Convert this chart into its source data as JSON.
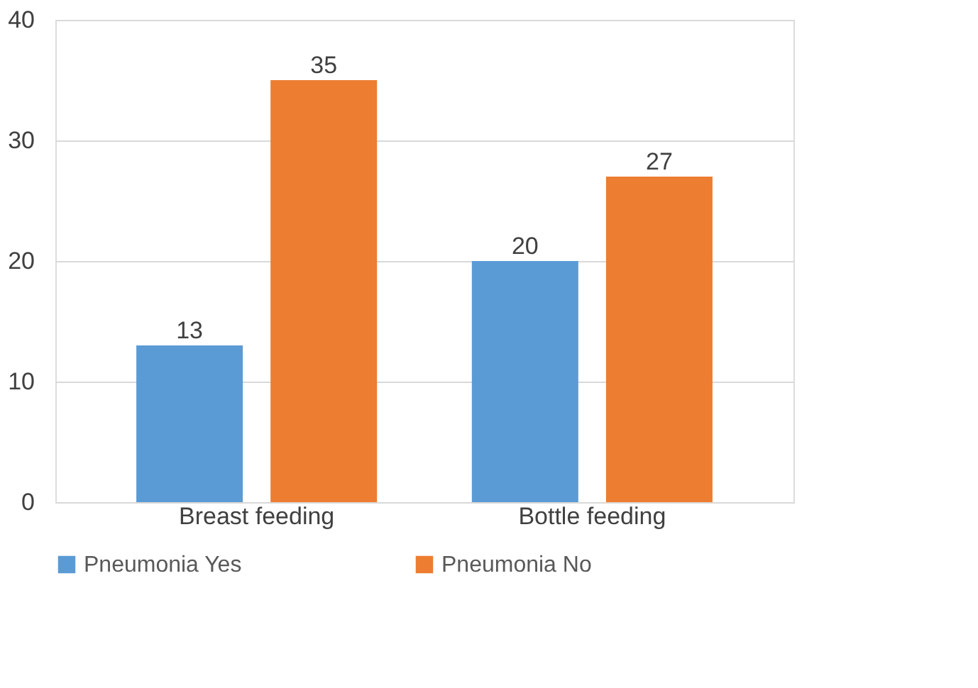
{
  "chart_data": {
    "type": "bar",
    "categories": [
      "Breast feeding",
      "Bottle feeding"
    ],
    "series": [
      {
        "name": "Pneumonia Yes",
        "color": "#5b9bd5",
        "values": [
          13,
          20
        ]
      },
      {
        "name": "Pneumonia No",
        "color": "#ed7d31",
        "values": [
          35,
          27
        ]
      }
    ],
    "ylim": [
      0,
      40
    ],
    "yticks": [
      0,
      10,
      20,
      30,
      40
    ],
    "grid": "y",
    "legend": "bottom",
    "data_labels": true
  }
}
